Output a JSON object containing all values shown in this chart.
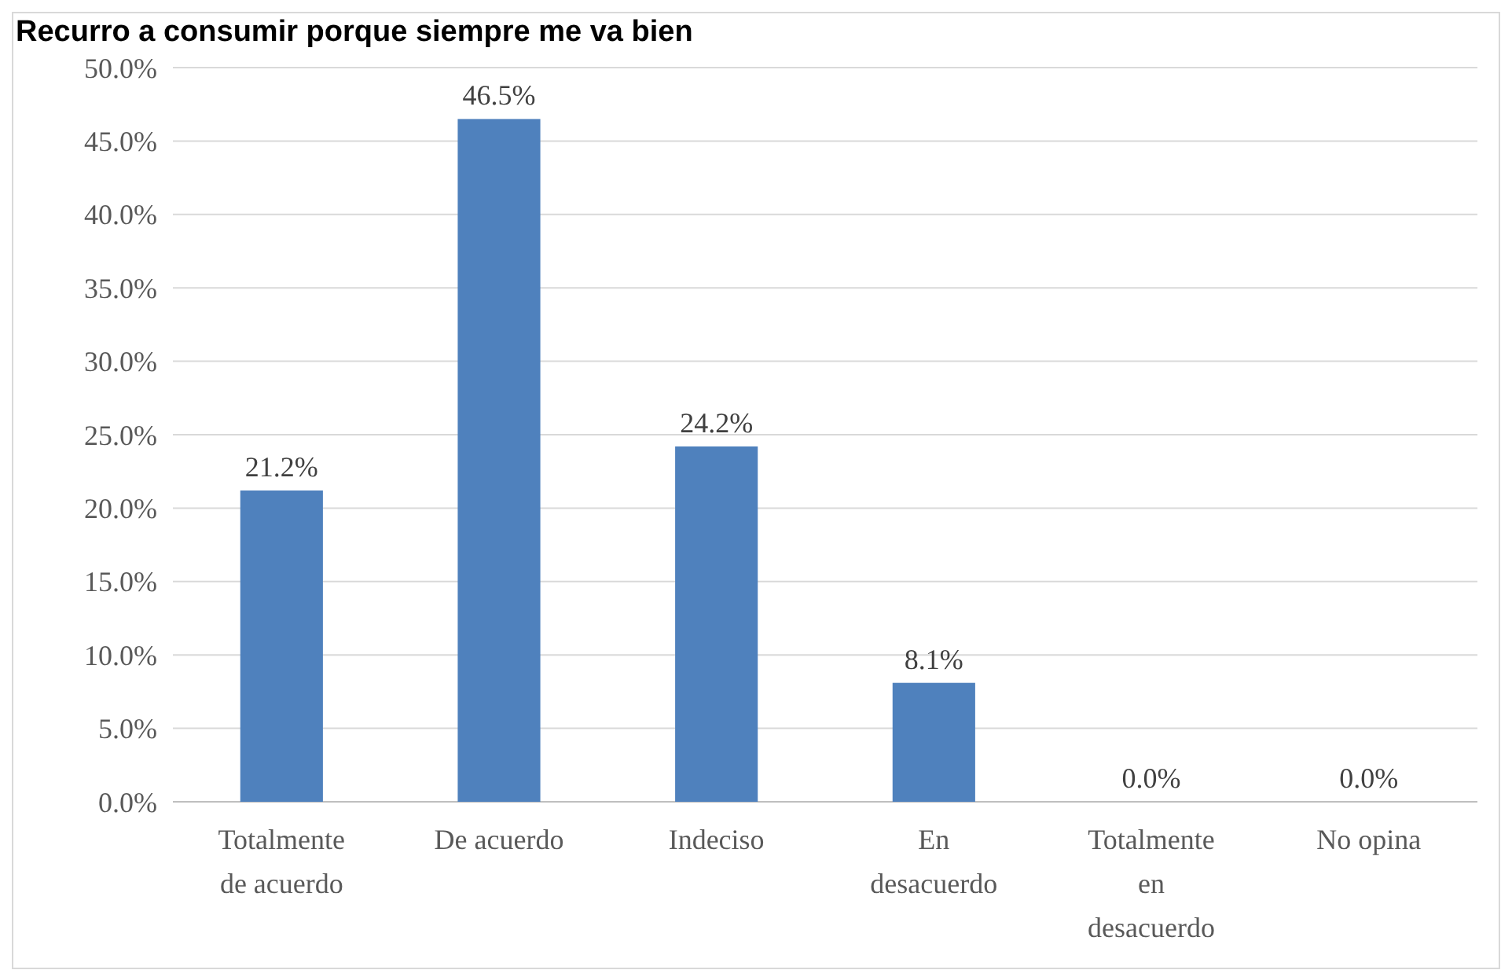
{
  "chart_data": {
    "type": "bar",
    "title": "Recurro a consumir porque siempre me va bien",
    "categories": [
      "Totalmente de acuerdo",
      "De acuerdo",
      "Indeciso",
      "En desacuerdo",
      "Totalmente en desacuerdo",
      "No opina"
    ],
    "values": [
      21.2,
      46.5,
      24.2,
      8.1,
      0.0,
      0.0
    ],
    "value_labels": [
      "21.2%",
      "46.5%",
      "24.2%",
      "8.1%",
      "0.0%",
      "0.0%"
    ],
    "color": "#4f81bd",
    "ylim": [
      0,
      50
    ],
    "yticks": [
      {
        "value": 0,
        "label": "0.0%"
      },
      {
        "value": 5,
        "label": "5.0%"
      },
      {
        "value": 10,
        "label": "10.0%"
      },
      {
        "value": 15,
        "label": "15.0%"
      },
      {
        "value": 20,
        "label": "20.0%"
      },
      {
        "value": 25,
        "label": "25.0%"
      },
      {
        "value": 30,
        "label": "30.0%"
      },
      {
        "value": 35,
        "label": "35.0%"
      },
      {
        "value": 40,
        "label": "40.0%"
      },
      {
        "value": 45,
        "label": "45.0%"
      },
      {
        "value": 50,
        "label": "50.0%"
      }
    ],
    "grid": "y"
  }
}
